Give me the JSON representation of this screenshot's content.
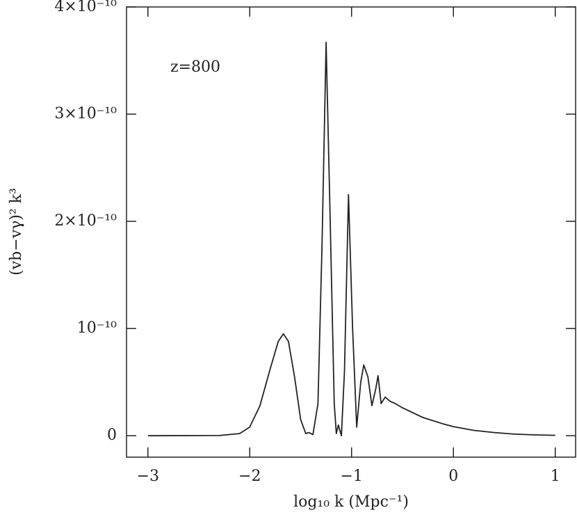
{
  "chart_data": {
    "type": "line",
    "x_label": "log₁₀ k (Mpc⁻¹)",
    "y_label": "(vb−vγ)² k³",
    "annotation": "z=800",
    "xlim": [
      -3.21,
      1.2
    ],
    "ylim": [
      -2e-11,
      4e-10
    ],
    "xticks": [
      {
        "value": -3,
        "label": "−3"
      },
      {
        "value": -2,
        "label": "−2"
      },
      {
        "value": -1,
        "label": "−1"
      },
      0,
      1
    ],
    "yticks": [
      0,
      {
        "value": 1e-10,
        "label": "10⁻¹⁰"
      },
      {
        "value": 2e-10,
        "label": "2×10⁻¹⁰"
      },
      {
        "value": 3e-10,
        "label": "3×10⁻¹⁰"
      },
      {
        "value": 4e-10,
        "label": "4×10⁻¹⁰"
      }
    ],
    "series": [
      {
        "color": "#222222",
        "x": [
          -3.0,
          -2.3,
          -2.1,
          -2.0,
          -1.9,
          -1.8,
          -1.72,
          -1.67,
          -1.62,
          -1.56,
          -1.5,
          -1.45,
          -1.42,
          -1.38,
          -1.33,
          -1.29,
          -1.25,
          -1.21,
          -1.17,
          -1.15,
          -1.13,
          -1.1,
          -1.07,
          -1.03,
          -0.99,
          -0.95,
          -0.91,
          -0.88,
          -0.84,
          -0.8,
          -0.76,
          -0.74,
          -0.71,
          -0.67,
          -0.62,
          -0.57,
          -0.5,
          -0.3,
          -0.1,
          0.0,
          0.2,
          0.4,
          0.6,
          0.8,
          1.0
        ],
        "values": [
          0,
          2e-13,
          2e-12,
          8e-12,
          2.8e-11,
          6.2e-11,
          8.8e-11,
          9.5e-11,
          8.8e-11,
          5.5e-11,
          1.5e-11,
          2e-12,
          3e-12,
          1e-12,
          3e-11,
          1.8e-10,
          3.67e-10,
          2e-10,
          3e-11,
          2e-12,
          1e-11,
          0,
          6e-11,
          2.25e-10,
          1e-10,
          8e-12,
          5e-11,
          6.6e-11,
          5.5e-11,
          2.8e-11,
          4.5e-11,
          5.6e-11,
          3e-11,
          3.6e-11,
          3.2e-11,
          3e-11,
          2.6e-11,
          1.7e-11,
          1.1e-11,
          8.5e-12,
          5e-12,
          3e-12,
          1.5e-12,
          8e-13,
          4e-13
        ]
      }
    ]
  }
}
